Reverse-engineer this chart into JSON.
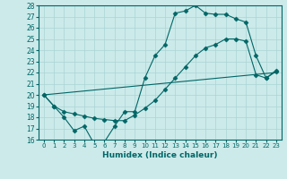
{
  "xlabel": "Humidex (Indice chaleur)",
  "bg_color": "#cceaea",
  "line_color": "#006666",
  "grid_color": "#aad4d4",
  "xlim": [
    -0.5,
    23.5
  ],
  "ylim": [
    16,
    28
  ],
  "xticks": [
    0,
    1,
    2,
    3,
    4,
    5,
    6,
    7,
    8,
    9,
    10,
    11,
    12,
    13,
    14,
    15,
    16,
    17,
    18,
    19,
    20,
    21,
    22,
    23
  ],
  "yticks": [
    16,
    17,
    18,
    19,
    20,
    21,
    22,
    23,
    24,
    25,
    26,
    27,
    28
  ],
  "series": [
    {
      "x": [
        0,
        1,
        2,
        3,
        4,
        5,
        6,
        7,
        8,
        9,
        10,
        11,
        12,
        13,
        14,
        15,
        16,
        17,
        18,
        19,
        20,
        21,
        22,
        23
      ],
      "y": [
        20,
        19,
        18,
        16.8,
        17.2,
        15.6,
        15.8,
        17.2,
        18.5,
        18.5,
        21.5,
        23.5,
        24.5,
        27.3,
        27.5,
        28,
        27.3,
        27.2,
        27.2,
        26.8,
        26.5,
        23.5,
        21.5,
        22.2
      ],
      "marker": "D",
      "markersize": 2.5
    },
    {
      "x": [
        0,
        23
      ],
      "y": [
        20,
        22
      ],
      "marker": null,
      "markersize": 0
    },
    {
      "x": [
        0,
        1,
        2,
        3,
        4,
        5,
        6,
        7,
        8,
        9,
        10,
        11,
        12,
        13,
        14,
        15,
        16,
        17,
        18,
        19,
        20,
        21,
        22,
        23
      ],
      "y": [
        20,
        19.0,
        18.5,
        18.3,
        18.1,
        17.9,
        17.8,
        17.7,
        17.7,
        18.2,
        18.8,
        19.5,
        20.5,
        21.5,
        22.5,
        23.5,
        24.2,
        24.5,
        25.0,
        25.0,
        24.8,
        21.8,
        21.5,
        22.1
      ],
      "marker": "D",
      "markersize": 2.5
    }
  ]
}
